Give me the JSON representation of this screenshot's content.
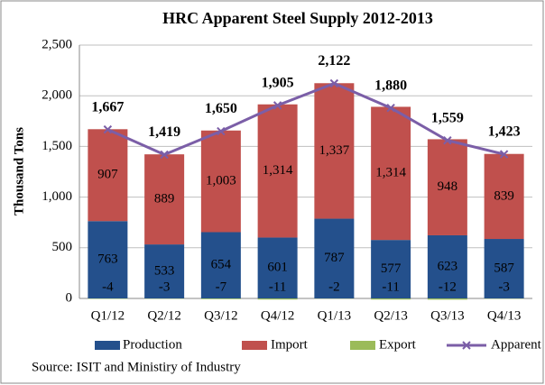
{
  "chart_data": {
    "type": "stacked-bar-line",
    "title": "HRC Apparent Steel Supply 2012-2013",
    "y_label": "Thousand Tons",
    "source": "Source: ISIT and Ministiry of Industry",
    "categories": [
      "Q1/12",
      "Q2/12",
      "Q3/12",
      "Q4/12",
      "Q1/13",
      "Q2/13",
      "Q3/13",
      "Q4/13"
    ],
    "series": [
      {
        "name": "Production",
        "color": "#24508c",
        "values": [
          763,
          533,
          654,
          601,
          787,
          577,
          623,
          587
        ]
      },
      {
        "name": "Import",
        "color": "#c0504d",
        "values": [
          907,
          889,
          1003,
          1314,
          1337,
          1314,
          948,
          839
        ],
        "value_labels": [
          "907",
          "889",
          "1,003",
          "1,314",
          "1,337",
          "1,314",
          "948",
          "839"
        ]
      },
      {
        "name": "Export",
        "color": "#9bbb59",
        "values": [
          -4,
          -3,
          -7,
          -11,
          -2,
          -11,
          -12,
          -3
        ]
      },
      {
        "name": "Apparent",
        "color": "#7b5ea7",
        "type": "line",
        "values": [
          1667,
          1419,
          1650,
          1905,
          2122,
          1880,
          1559,
          1423
        ],
        "value_labels": [
          "1,667",
          "1,419",
          "1,650",
          "1,905",
          "2,122",
          "1,880",
          "1,559",
          "1,423"
        ]
      }
    ],
    "ylim": [
      0,
      2500
    ],
    "yticks": [
      0,
      500,
      {
        "value": 1000,
        "label": "1,000"
      },
      {
        "value": 1500,
        "label": "1,500"
      },
      {
        "value": 2000,
        "label": "2,000"
      },
      {
        "value": 2500,
        "label": "2,500"
      }
    ],
    "grid": true,
    "legend": "bottom"
  }
}
